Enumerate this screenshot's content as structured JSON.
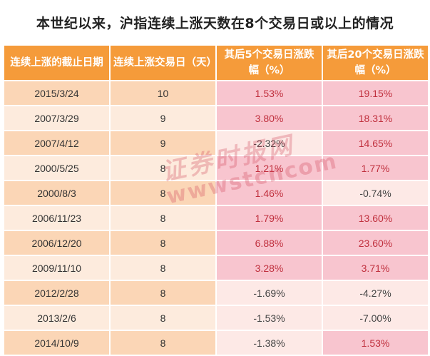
{
  "title": "本世纪以来，沪指连续上涨天数在8个交易日或以上的情况",
  "headers": [
    "连续上涨的截止日期",
    "连续上涨交易日（天）",
    "其后5个交易日涨跌幅（%）",
    "其后20个交易日涨跌幅（%）"
  ],
  "rows": [
    {
      "date": "2015/3/24",
      "days": "10",
      "after5": "1.53%",
      "after20": "19.15%"
    },
    {
      "date": "2007/3/29",
      "days": "9",
      "after5": "3.80%",
      "after20": "18.31%"
    },
    {
      "date": "2007/4/12",
      "days": "9",
      "after5": "-2.32%",
      "after20": "14.65%"
    },
    {
      "date": "2000/5/25",
      "days": "8",
      "after5": "1.21%",
      "after20": "1.77%"
    },
    {
      "date": "2000/8/3",
      "days": "8",
      "after5": "1.46%",
      "after20": "-0.74%"
    },
    {
      "date": "2006/11/23",
      "days": "8",
      "after5": "1.79%",
      "after20": "13.60%"
    },
    {
      "date": "2006/12/20",
      "days": "8",
      "after5": "6.88%",
      "after20": "23.60%"
    },
    {
      "date": "2009/11/10",
      "days": "8",
      "after5": "3.28%",
      "after20": "3.71%"
    },
    {
      "date": "2012/2/28",
      "days": "8",
      "after5": "-1.69%",
      "after20": "-4.27%"
    },
    {
      "date": "2013/2/6",
      "days": "8",
      "after5": "-1.53%",
      "after20": "-7.00%"
    },
    {
      "date": "2014/10/9",
      "days": "8",
      "after5": "-1.38%",
      "after20": "1.53%"
    }
  ],
  "watermark": {
    "cn": "证券时报网",
    "url": "wwwstcncom"
  },
  "colors": {
    "header_bg": "#f59b3a",
    "row_odd": "#fbd6b6",
    "row_even": "#fdebdd",
    "positive_fill": "#f8c5cf",
    "positive_text": "#c0303e"
  }
}
